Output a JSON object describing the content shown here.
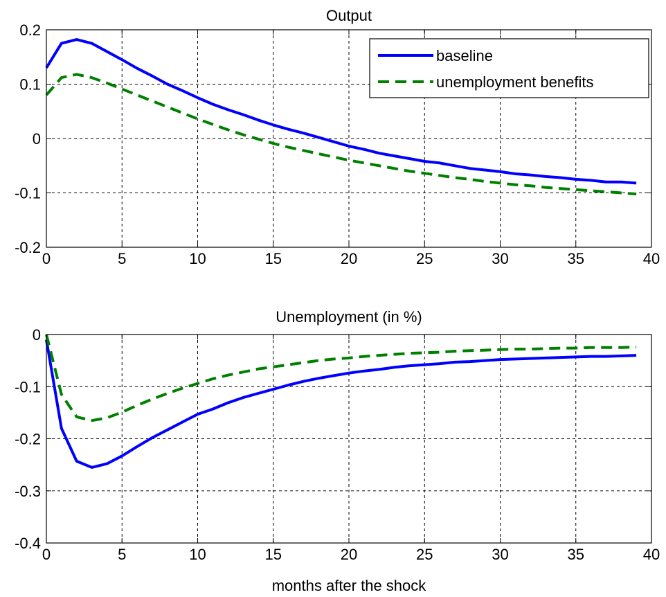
{
  "chart_data": [
    {
      "type": "line",
      "title": "Output",
      "xlabel": "",
      "ylabel": "",
      "xlim": [
        0,
        40
      ],
      "ylim": [
        -0.2,
        0.2
      ],
      "xticks": [
        0,
        5,
        10,
        15,
        20,
        25,
        30,
        35,
        40
      ],
      "xtick_labels": [
        "0",
        "5",
        "10",
        "15",
        "20",
        "25",
        "30",
        "35",
        "40"
      ],
      "yticks": [
        -0.2,
        -0.1,
        0,
        0.1,
        0.2
      ],
      "ytick_labels": [
        "-0.2",
        "-0.1",
        "0",
        "0.1",
        "0.2"
      ],
      "grid": true,
      "legend": "top-right",
      "series": [
        {
          "name": "baseline",
          "color": "#0000ff",
          "style": "solid",
          "x": [
            0,
            1,
            2,
            3,
            4,
            5,
            6,
            7,
            8,
            9,
            10,
            11,
            12,
            13,
            14,
            15,
            16,
            17,
            18,
            19,
            20,
            21,
            22,
            23,
            24,
            25,
            26,
            27,
            28,
            29,
            30,
            31,
            32,
            33,
            34,
            35,
            36,
            37,
            38,
            39
          ],
          "values": [
            0.13,
            0.175,
            0.182,
            0.175,
            0.16,
            0.145,
            0.129,
            0.115,
            0.1,
            0.088,
            0.075,
            0.063,
            0.053,
            0.044,
            0.034,
            0.025,
            0.017,
            0.01,
            0.002,
            -0.006,
            -0.014,
            -0.02,
            -0.027,
            -0.032,
            -0.037,
            -0.042,
            -0.045,
            -0.05,
            -0.055,
            -0.058,
            -0.061,
            -0.065,
            -0.067,
            -0.07,
            -0.072,
            -0.075,
            -0.077,
            -0.08,
            -0.08,
            -0.082
          ]
        },
        {
          "name": "unemployment benefits",
          "color": "#008000",
          "style": "dashed",
          "x": [
            0,
            1,
            2,
            3,
            4,
            5,
            6,
            7,
            8,
            9,
            10,
            11,
            12,
            13,
            14,
            15,
            16,
            17,
            18,
            19,
            20,
            21,
            22,
            23,
            24,
            25,
            26,
            27,
            28,
            29,
            30,
            31,
            32,
            33,
            34,
            35,
            36,
            37,
            38,
            39
          ],
          "values": [
            0.08,
            0.112,
            0.118,
            0.112,
            0.102,
            0.091,
            0.08,
            0.069,
            0.058,
            0.047,
            0.036,
            0.026,
            0.016,
            0.007,
            -0.001,
            -0.009,
            -0.016,
            -0.022,
            -0.028,
            -0.034,
            -0.04,
            -0.045,
            -0.05,
            -0.055,
            -0.06,
            -0.064,
            -0.068,
            -0.072,
            -0.075,
            -0.079,
            -0.082,
            -0.085,
            -0.087,
            -0.09,
            -0.092,
            -0.094,
            -0.096,
            -0.098,
            -0.1,
            -0.102
          ]
        }
      ]
    },
    {
      "type": "line",
      "title": "Unemployment (in %)",
      "xlabel": "months after the shock",
      "ylabel": "",
      "xlim": [
        0,
        40
      ],
      "ylim": [
        -0.4,
        0
      ],
      "xticks": [
        0,
        5,
        10,
        15,
        20,
        25,
        30,
        35,
        40
      ],
      "xtick_labels": [
        "0",
        "5",
        "10",
        "15",
        "20",
        "25",
        "30",
        "35",
        "40"
      ],
      "yticks": [
        -0.4,
        -0.3,
        -0.2,
        -0.1,
        0
      ],
      "ytick_labels": [
        "-0.4",
        "-0.3",
        "-0.2",
        "-0.1",
        "0"
      ],
      "grid": true,
      "series": [
        {
          "name": "baseline",
          "color": "#0000ff",
          "style": "solid",
          "x": [
            0,
            1,
            2,
            3,
            4,
            5,
            6,
            7,
            8,
            9,
            10,
            11,
            12,
            13,
            14,
            15,
            16,
            17,
            18,
            19,
            20,
            21,
            22,
            23,
            24,
            25,
            26,
            27,
            28,
            29,
            30,
            31,
            32,
            33,
            34,
            35,
            36,
            37,
            38,
            39
          ],
          "values": [
            -0.01,
            -0.18,
            -0.243,
            -0.255,
            -0.248,
            -0.233,
            -0.215,
            -0.198,
            -0.183,
            -0.168,
            -0.153,
            -0.143,
            -0.131,
            -0.121,
            -0.113,
            -0.105,
            -0.097,
            -0.09,
            -0.084,
            -0.079,
            -0.074,
            -0.07,
            -0.067,
            -0.063,
            -0.06,
            -0.058,
            -0.056,
            -0.053,
            -0.052,
            -0.05,
            -0.048,
            -0.047,
            -0.046,
            -0.045,
            -0.044,
            -0.043,
            -0.042,
            -0.042,
            -0.041,
            -0.04
          ]
        },
        {
          "name": "unemployment benefits",
          "color": "#008000",
          "style": "dashed",
          "x": [
            0,
            1,
            2,
            3,
            4,
            5,
            6,
            7,
            8,
            9,
            10,
            11,
            12,
            13,
            14,
            15,
            16,
            17,
            18,
            19,
            20,
            21,
            22,
            23,
            24,
            25,
            26,
            27,
            28,
            29,
            30,
            31,
            32,
            33,
            34,
            35,
            36,
            37,
            38,
            39
          ],
          "values": [
            0,
            -0.115,
            -0.158,
            -0.165,
            -0.16,
            -0.149,
            -0.136,
            -0.124,
            -0.113,
            -0.103,
            -0.094,
            -0.085,
            -0.078,
            -0.072,
            -0.066,
            -0.062,
            -0.058,
            -0.054,
            -0.05,
            -0.047,
            -0.045,
            -0.042,
            -0.04,
            -0.038,
            -0.036,
            -0.035,
            -0.034,
            -0.032,
            -0.031,
            -0.03,
            -0.029,
            -0.028,
            -0.028,
            -0.027,
            -0.026,
            -0.026,
            -0.025,
            -0.025,
            -0.025,
            -0.024
          ]
        }
      ]
    }
  ]
}
